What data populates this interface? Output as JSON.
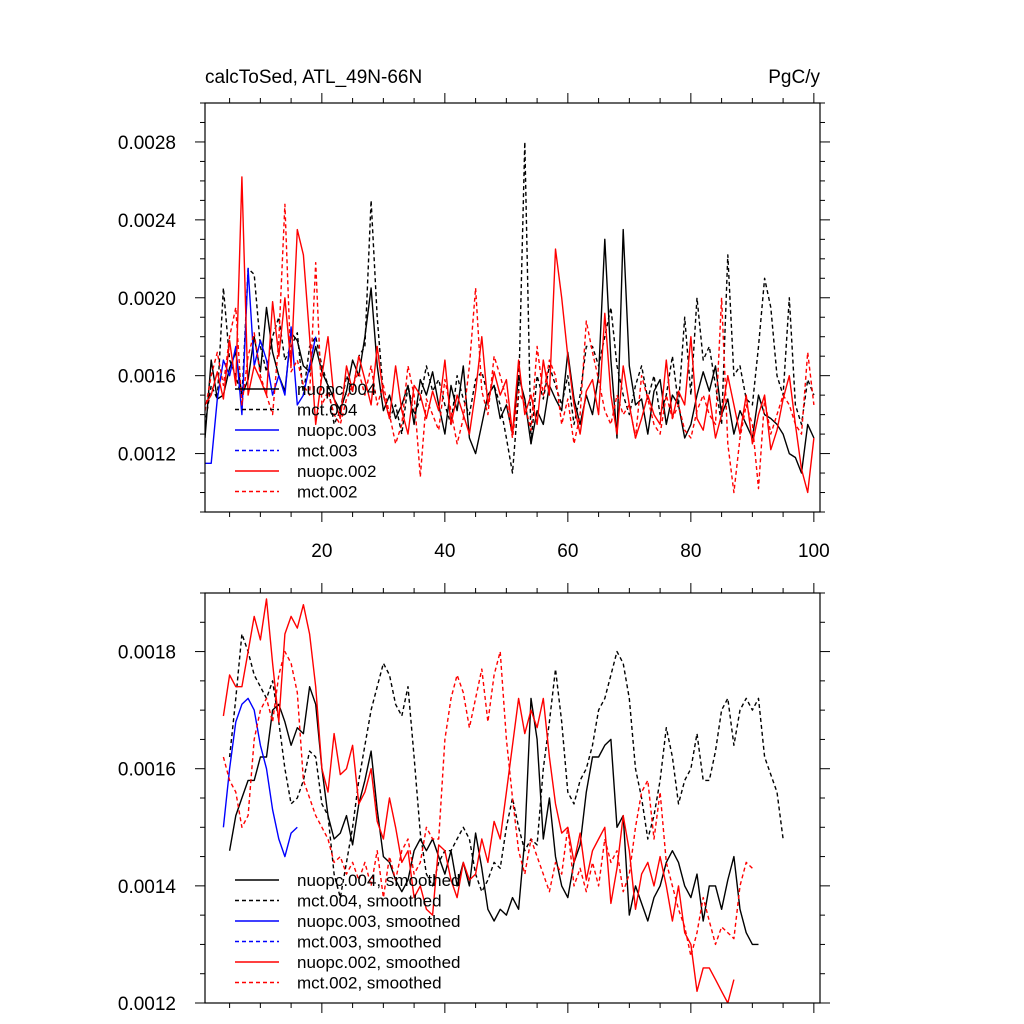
{
  "header": {
    "title": "calcToSed, ATL_49N-66N",
    "units": "PgC/y"
  },
  "colors": {
    "nuopc.004": "#000000",
    "mct.004": "#000000",
    "nuopc.003": "#0000ff",
    "mct.003": "#0000ff",
    "nuopc.002": "#ff0000",
    "mct.002": "#ff0000"
  },
  "chart_data": [
    {
      "type": "line",
      "title": "calcToSed, ATL_49N-66N",
      "units": "PgC/y",
      "xlim": [
        1,
        101
      ],
      "ylim": [
        0.0009,
        0.003
      ],
      "xticks": [
        20,
        40,
        60,
        80,
        100
      ],
      "xtick_labels": [
        "20",
        "40",
        "60",
        "80",
        "100"
      ],
      "yticks": [
        0.0012,
        0.0016,
        0.002,
        0.0024,
        0.0028
      ],
      "ytick_labels": [
        "0.0012",
        "0.0016",
        "0.0020",
        "0.0024",
        "0.0028"
      ],
      "grid": false,
      "legend_position": "bottom-left",
      "series": [
        {
          "name": "nuopc.004",
          "color": "#000000",
          "dash": false,
          "x_start": 1,
          "values": [
            0.00128,
            0.00168,
            0.00148,
            0.0015,
            0.00164,
            0.00172,
            0.0015,
            0.00158,
            0.0018,
            0.00162,
            0.00195,
            0.00172,
            0.0016,
            0.00152,
            0.00182,
            0.00178,
            0.00165,
            0.00162,
            0.00175,
            0.00162,
            0.00155,
            0.00148,
            0.00142,
            0.00152,
            0.00168,
            0.0016,
            0.0018,
            0.00205,
            0.00165,
            0.00142,
            0.0015,
            0.00138,
            0.00145,
            0.00155,
            0.00135,
            0.00158,
            0.0015,
            0.00162,
            0.00145,
            0.0013,
            0.00155,
            0.00142,
            0.00165,
            0.00128,
            0.0012,
            0.00135,
            0.0015,
            0.00155,
            0.00138,
            0.00145,
            0.0013,
            0.0016,
            0.00148,
            0.00125,
            0.00142,
            0.00135,
            0.00155,
            0.00148,
            0.00142,
            0.00172,
            0.00148,
            0.00135,
            0.0015,
            0.0014,
            0.0016,
            0.0023,
            0.00168,
            0.00128,
            0.00235,
            0.00165,
            0.00145,
            0.00148,
            0.0013,
            0.00152,
            0.00158,
            0.00135,
            0.0015,
            0.00145,
            0.00128,
            0.00135,
            0.0015,
            0.00162,
            0.00152,
            0.00165,
            0.0014,
            0.00148,
            0.0013,
            0.00142,
            0.00135,
            0.00128,
            0.0015,
            0.0014,
            0.00138,
            0.00135,
            0.0013,
            0.0012,
            0.00118,
            0.0011,
            0.00135,
            0.00128
          ]
        },
        {
          "name": "mct.004",
          "color": "#000000",
          "dash": true,
          "x_start": 1,
          "values": [
            0.00135,
            0.00155,
            0.00148,
            0.00205,
            0.00168,
            0.0016,
            0.00148,
            0.00215,
            0.00212,
            0.00175,
            0.00162,
            0.0018,
            0.0019,
            0.00168,
            0.00175,
            0.00182,
            0.0015,
            0.00175,
            0.0018,
            0.00165,
            0.00155,
            0.00135,
            0.00142,
            0.0016,
            0.00152,
            0.0017,
            0.00175,
            0.0025,
            0.0019,
            0.0015,
            0.00138,
            0.00145,
            0.0013,
            0.00155,
            0.0014,
            0.00148,
            0.00165,
            0.00152,
            0.00158,
            0.00145,
            0.00135,
            0.0016,
            0.00148,
            0.0014,
            0.00158,
            0.00162,
            0.0015,
            0.00155,
            0.00145,
            0.00128,
            0.0011,
            0.0015,
            0.0028,
            0.00125,
            0.0016,
            0.00148,
            0.00165,
            0.00155,
            0.00145,
            0.0016,
            0.00135,
            0.0015,
            0.00175,
            0.00175,
            0.00165,
            0.0018,
            0.00195,
            0.00165,
            0.0015,
            0.0014,
            0.00155,
            0.00165,
            0.00148,
            0.0016,
            0.0014,
            0.0015,
            0.0017,
            0.00145,
            0.0019,
            0.0015,
            0.002,
            0.00168,
            0.00175,
            0.00155,
            0.00135,
            0.00222,
            0.0016,
            0.00165,
            0.00148,
            0.00145,
            0.00175,
            0.0021,
            0.00195,
            0.0016,
            0.0015,
            0.002,
            0.00145,
            0.00135,
            0.00158,
            0.0015
          ]
        },
        {
          "name": "nuopc.003",
          "color": "#0000ff",
          "dash": false,
          "x_start": 1,
          "values": [
            0.00115,
            0.00115,
            0.00148,
            0.00168,
            0.0016,
            0.00175,
            0.0014,
            0.00215,
            0.00165,
            0.00178,
            0.00168,
            0.0015,
            0.0016,
            0.0015,
            0.00185,
            0.00145,
            0.0015,
            0.00165,
            0.0018
          ]
        },
        {
          "name": "mct.003",
          "color": "#0000ff",
          "dash": true,
          "x_start": 1,
          "values": []
        },
        {
          "name": "nuopc.002",
          "color": "#ff0000",
          "dash": false,
          "x_start": 1,
          "values": [
            0.00145,
            0.0015,
            0.00162,
            0.00148,
            0.00178,
            0.00155,
            0.00262,
            0.0015,
            0.00165,
            0.00158,
            0.0015,
            0.00198,
            0.0017,
            0.002,
            0.00165,
            0.00235,
            0.00222,
            0.0018,
            0.00135,
            0.0016,
            0.0018,
            0.00148,
            0.00138,
            0.00165,
            0.00152,
            0.0017,
            0.00158,
            0.00145,
            0.00175,
            0.0015,
            0.00138,
            0.00165,
            0.00142,
            0.0013,
            0.00155,
            0.0015,
            0.00138,
            0.00152,
            0.00142,
            0.00168,
            0.00135,
            0.0015,
            0.0014,
            0.0013,
            0.00152,
            0.0018,
            0.00145,
            0.00162,
            0.0015,
            0.00158,
            0.0013,
            0.00168,
            0.0014,
            0.0015,
            0.00135,
            0.00168,
            0.0015,
            0.00225,
            0.002,
            0.0017,
            0.00145,
            0.0013,
            0.00152,
            0.00158,
            0.0014,
            0.00192,
            0.0015,
            0.0013,
            0.00165,
            0.00145,
            0.00128,
            0.00138,
            0.0015,
            0.0014,
            0.00135,
            0.00168,
            0.00138,
            0.00152,
            0.00145,
            0.0018,
            0.00138,
            0.00132,
            0.0015,
            0.00128,
            0.0014,
            0.0016,
            0.00145,
            0.0013,
            0.0015,
            0.00125,
            0.0014,
            0.0015,
            0.00122,
            0.00132,
            0.00148,
            0.0016,
            0.00135,
            0.00112,
            0.001,
            0.00128
          ]
        },
        {
          "name": "mct.002",
          "color": "#ff0000",
          "dash": true,
          "x_start": 1,
          "values": [
            0.00142,
            0.0016,
            0.00172,
            0.00155,
            0.0018,
            0.00195,
            0.00145,
            0.0017,
            0.00182,
            0.0016,
            0.0015,
            0.0014,
            0.00178,
            0.00248,
            0.00162,
            0.00168,
            0.00155,
            0.0015,
            0.00218,
            0.00145,
            0.00152,
            0.0014,
            0.00135,
            0.00148,
            0.00155,
            0.00162,
            0.0015,
            0.00165,
            0.00145,
            0.00155,
            0.0014,
            0.00125,
            0.00135,
            0.00165,
            0.0015,
            0.00108,
            0.00148,
            0.0014,
            0.00132,
            0.00158,
            0.00142,
            0.00125,
            0.00138,
            0.00165,
            0.00205,
            0.00152,
            0.0014,
            0.0017,
            0.0016,
            0.00148,
            0.00128,
            0.00152,
            0.00145,
            0.00132,
            0.00175,
            0.0015,
            0.00168,
            0.0016,
            0.00135,
            0.00148,
            0.00125,
            0.0014,
            0.00188,
            0.00172,
            0.00158,
            0.00142,
            0.00135,
            0.0015,
            0.0014,
            0.00145,
            0.00128,
            0.0016,
            0.00148,
            0.00135,
            0.0013,
            0.0015,
            0.00138,
            0.00145,
            0.00132,
            0.00128,
            0.00142,
            0.0015,
            0.0014,
            0.00135,
            0.002,
            0.00125,
            0.001,
            0.00128,
            0.00145,
            0.00135,
            0.00102,
            0.00148,
            0.0013,
            0.0014,
            0.0015,
            0.00145,
            0.00135,
            0.0013,
            0.00172,
            0.00145
          ]
        }
      ]
    },
    {
      "type": "line",
      "xlim": [
        1,
        101
      ],
      "ylim": [
        0.0012,
        0.0019
      ],
      "xticks": [
        20,
        40,
        60,
        80,
        100
      ],
      "xtick_labels": [],
      "yticks": [
        0.0012,
        0.0014,
        0.0016,
        0.0018
      ],
      "ytick_labels": [
        "0.0012",
        "0.0014",
        "0.0016",
        "0.0018"
      ],
      "grid": false,
      "legend_position": "bottom-left",
      "series": [
        {
          "name": "nuopc.004, smoothed",
          "color": "#000000",
          "dash": false,
          "x_start": 5,
          "values": [
            0.00146,
            0.00152,
            0.00155,
            0.00158,
            0.00158,
            0.00162,
            0.00162,
            0.0017,
            0.00171,
            0.00168,
            0.00164,
            0.00167,
            0.00166,
            0.00174,
            0.00171,
            0.0016,
            0.00152,
            0.00148,
            0.00149,
            0.00152,
            0.00147,
            0.00154,
            0.00158,
            0.00163,
            0.00153,
            0.00145,
            0.00144,
            0.00141,
            0.00139,
            0.00141,
            0.00146,
            0.00148,
            0.00146,
            0.00148,
            0.00145,
            0.00142,
            0.00146,
            0.0014,
            0.00144,
            0.0014,
            0.00149,
            0.00143,
            0.00136,
            0.00134,
            0.00136,
            0.00135,
            0.00138,
            0.00136,
            0.00148,
            0.00172,
            0.00165,
            0.00148,
            0.00155,
            0.00145,
            0.0014,
            0.00138,
            0.00144,
            0.00147,
            0.00156,
            0.00162,
            0.00162,
            0.00164,
            0.00165,
            0.0015,
            0.00152,
            0.00135,
            0.0014,
            0.00137,
            0.00134,
            0.00138,
            0.0014,
            0.00144,
            0.00146,
            0.00144,
            0.0014,
            0.00138,
            0.00142,
            0.00134,
            0.0014,
            0.0014,
            0.00136,
            0.00141,
            0.00145,
            0.00136,
            0.00132,
            0.0013,
            0.0013
          ]
        },
        {
          "name": "mct.004, smoothed",
          "color": "#000000",
          "dash": true,
          "x_start": 5,
          "values": [
            0.00162,
            0.00172,
            0.00183,
            0.0018,
            0.00176,
            0.00174,
            0.00172,
            0.00175,
            0.00168,
            0.0016,
            0.00154,
            0.00155,
            0.00158,
            0.00163,
            0.00162,
            0.00154,
            0.00152,
            0.00142,
            0.00138,
            0.00144,
            0.0015,
            0.00158,
            0.00164,
            0.0017,
            0.00174,
            0.00178,
            0.00176,
            0.00171,
            0.00169,
            0.00174,
            0.00162,
            0.00149,
            0.00142,
            0.0014,
            0.00144,
            0.00146,
            0.00146,
            0.00148,
            0.0015,
            0.00148,
            0.00142,
            0.00139,
            0.00141,
            0.00144,
            0.00143,
            0.0015,
            0.00155,
            0.0015,
            0.00146,
            0.00148,
            0.00147,
            0.0016,
            0.00168,
            0.00177,
            0.00168,
            0.00156,
            0.00154,
            0.00158,
            0.0016,
            0.00164,
            0.0017,
            0.00172,
            0.00176,
            0.0018,
            0.00178,
            0.00172,
            0.0016,
            0.00155,
            0.00148,
            0.00152,
            0.00158,
            0.00167,
            0.00162,
            0.00154,
            0.00158,
            0.0016,
            0.00166,
            0.00158,
            0.00158,
            0.00163,
            0.0017,
            0.00172,
            0.00164,
            0.0017,
            0.00172,
            0.0017,
            0.00172,
            0.00162,
            0.00159,
            0.00156,
            0.00148
          ]
        },
        {
          "name": "nuopc.003, smoothed",
          "color": "#0000ff",
          "dash": false,
          "x_start": 4,
          "values": [
            0.0015,
            0.0016,
            0.00168,
            0.00171,
            0.00172,
            0.0017,
            0.00164,
            0.0016,
            0.00153,
            0.00148,
            0.00145,
            0.00149,
            0.0015
          ]
        },
        {
          "name": "mct.003, smoothed",
          "color": "#0000ff",
          "dash": true,
          "x_start": 4,
          "values": []
        },
        {
          "name": "nuopc.002, smoothed",
          "color": "#ff0000",
          "dash": false,
          "x_start": 4,
          "values": [
            0.00169,
            0.00176,
            0.00174,
            0.00174,
            0.0018,
            0.00186,
            0.00182,
            0.00189,
            0.00178,
            0.00168,
            0.00183,
            0.00186,
            0.00184,
            0.00188,
            0.00183,
            0.00174,
            0.0016,
            0.00156,
            0.00166,
            0.00159,
            0.0016,
            0.00164,
            0.00154,
            0.00156,
            0.0016,
            0.00151,
            0.00148,
            0.00155,
            0.0015,
            0.00144,
            0.00146,
            0.00138,
            0.0014,
            0.00136,
            0.00135,
            0.00147,
            0.00146,
            0.00141,
            0.00138,
            0.00144,
            0.00141,
            0.00142,
            0.00148,
            0.00144,
            0.00151,
            0.00148,
            0.00156,
            0.00164,
            0.00172,
            0.00166,
            0.0017,
            0.00167,
            0.00172,
            0.00162,
            0.00154,
            0.00149,
            0.0015,
            0.00144,
            0.00149,
            0.00141,
            0.00146,
            0.00148,
            0.0015,
            0.00137,
            0.00143,
            0.00152,
            0.00146,
            0.00136,
            0.00142,
            0.00144,
            0.0014,
            0.00145,
            0.0014,
            0.00134,
            0.0014,
            0.00132,
            0.0013,
            0.00122,
            0.00126,
            0.00126,
            0.00124,
            0.00122,
            0.0012,
            0.00124
          ]
        },
        {
          "name": "mct.002, smoothed",
          "color": "#ff0000",
          "dash": true,
          "x_start": 4,
          "values": [
            0.00162,
            0.00158,
            0.00156,
            0.0015,
            0.00152,
            0.00165,
            0.0017,
            0.00172,
            0.00168,
            0.00176,
            0.0018,
            0.00178,
            0.00173,
            0.00158,
            0.00155,
            0.00152,
            0.0015,
            0.00148,
            0.00144,
            0.00145,
            0.00142,
            0.00144,
            0.00141,
            0.00144,
            0.0014,
            0.00146,
            0.00138,
            0.00145,
            0.00141,
            0.00146,
            0.00148,
            0.00142,
            0.00144,
            0.0015,
            0.00148,
            0.00148,
            0.00165,
            0.00172,
            0.00176,
            0.00173,
            0.00167,
            0.00172,
            0.00177,
            0.00168,
            0.00176,
            0.0018,
            0.00165,
            0.00155,
            0.00146,
            0.00142,
            0.00148,
            0.00145,
            0.00142,
            0.00139,
            0.00144,
            0.00142,
            0.0015,
            0.0014,
            0.00143,
            0.00139,
            0.00144,
            0.0014,
            0.00148,
            0.00144,
            0.00146,
            0.00139,
            0.00142,
            0.0015,
            0.00156,
            0.00158,
            0.00148,
            0.00156,
            0.00144,
            0.0014,
            0.00136,
            0.00133,
            0.00128,
            0.00132,
            0.00138,
            0.00134,
            0.0013,
            0.00133,
            0.00132,
            0.00131,
            0.0014,
            0.00144,
            0.00143
          ]
        }
      ]
    }
  ]
}
